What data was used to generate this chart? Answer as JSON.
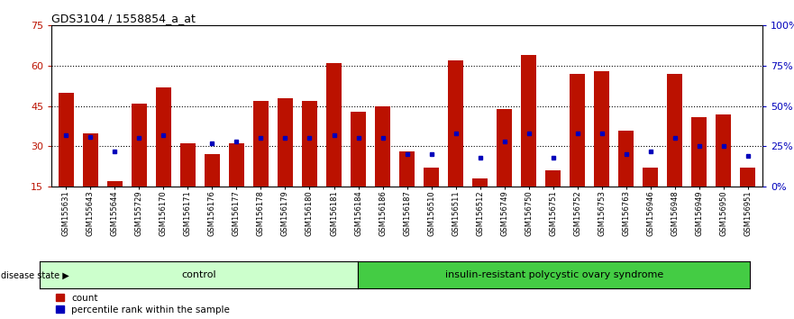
{
  "title": "GDS3104 / 1558854_a_at",
  "samples": [
    "GSM155631",
    "GSM155643",
    "GSM155644",
    "GSM155729",
    "GSM156170",
    "GSM156171",
    "GSM156176",
    "GSM156177",
    "GSM156178",
    "GSM156179",
    "GSM156180",
    "GSM156181",
    "GSM156184",
    "GSM156186",
    "GSM156187",
    "GSM156510",
    "GSM156511",
    "GSM156512",
    "GSM156749",
    "GSM156750",
    "GSM156751",
    "GSM156752",
    "GSM156753",
    "GSM156763",
    "GSM156946",
    "GSM156948",
    "GSM156949",
    "GSM156950",
    "GSM156951"
  ],
  "counts": [
    50,
    35,
    17,
    46,
    52,
    31,
    27,
    31,
    47,
    48,
    47,
    61,
    43,
    45,
    28,
    22,
    62,
    18,
    44,
    64,
    21,
    57,
    58,
    36,
    22,
    57,
    41,
    42,
    22
  ],
  "percentiles_pct": [
    32,
    31,
    22,
    30,
    32,
    null,
    27,
    28,
    30,
    30,
    30,
    32,
    30,
    30,
    20,
    20,
    33,
    18,
    28,
    33,
    18,
    33,
    33,
    20,
    22,
    30,
    25,
    25,
    19
  ],
  "n_control": 13,
  "group_labels": [
    "control",
    "insulin-resistant polycystic ovary syndrome"
  ],
  "bar_color": "#BB1100",
  "percentile_color": "#0000BB",
  "ylim_left": [
    15,
    75
  ],
  "ylim_right": [
    0,
    100
  ],
  "yticks_left": [
    15,
    30,
    45,
    60,
    75
  ],
  "yticks_right": [
    0,
    25,
    50,
    75,
    100
  ],
  "ytick_labels_right": [
    "0%",
    "25%",
    "50%",
    "75%",
    "100%"
  ],
  "hlines": [
    30,
    45,
    60
  ],
  "ctrl_color": "#CCFFCC",
  "irpcos_color": "#44CC44",
  "plot_bg": "#FFFFFF"
}
